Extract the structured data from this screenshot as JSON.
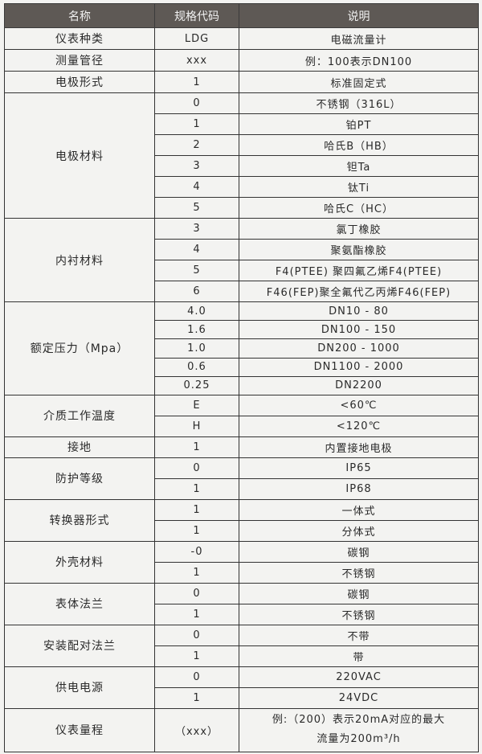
{
  "header": {
    "name": "名称",
    "code": "规格代码",
    "desc": "说明"
  },
  "groups": [
    {
      "name": "仪表种类",
      "rows": [
        {
          "code": "LDG",
          "desc": "电磁流量计"
        }
      ]
    },
    {
      "name": "测量管径",
      "rows": [
        {
          "code": "xxx",
          "desc": "例：100表示DN100"
        }
      ]
    },
    {
      "name": "电极形式",
      "rows": [
        {
          "code": "1",
          "desc": "标准固定式"
        }
      ]
    },
    {
      "name": "电极材料",
      "rows": [
        {
          "code": "0",
          "desc": "不锈钢（316L）"
        },
        {
          "code": "1",
          "desc": "铂PT"
        },
        {
          "code": "2",
          "desc": "哈氏B（HB）"
        },
        {
          "code": "3",
          "desc": "钽Ta"
        },
        {
          "code": "4",
          "desc": "钛Ti"
        },
        {
          "code": "5",
          "desc": "哈氏C（HC）"
        }
      ]
    },
    {
      "name": "内衬材料",
      "rows": [
        {
          "code": "3",
          "desc": "氯丁橡胶"
        },
        {
          "code": "4",
          "desc": "聚氨酯橡胶"
        },
        {
          "code": "5",
          "desc": "F4(PTEE) 聚四氟乙烯F4(PTEE)"
        },
        {
          "code": "6",
          "desc": "F46(FEP)聚全氟代乙丙烯F46(FEP)"
        }
      ]
    },
    {
      "name": "额定压力（Mpa）",
      "rows": [
        {
          "code": "4.0",
          "desc": "DN10 - 80"
        },
        {
          "code": "1.6",
          "desc": "DN100 - 150"
        },
        {
          "code": "1.0",
          "desc": "DN200 - 1000"
        },
        {
          "code": "0.6",
          "desc": "DN1100 - 2000"
        },
        {
          "code": "0.25",
          "desc": "DN2200"
        }
      ]
    },
    {
      "name": "介质工作温度",
      "rows": [
        {
          "code": "E",
          "desc": "<60℃"
        },
        {
          "code": "H",
          "desc": "<120℃"
        }
      ]
    },
    {
      "name": "接地",
      "rows": [
        {
          "code": "1",
          "desc": "内置接地电极"
        }
      ]
    },
    {
      "name": "防护等级",
      "rows": [
        {
          "code": "0",
          "desc": "IP65"
        },
        {
          "code": "1",
          "desc": "IP68"
        }
      ]
    },
    {
      "name": "转换器形式",
      "rows": [
        {
          "code": "1",
          "desc": "一体式"
        },
        {
          "code": "1",
          "desc": "分体式"
        }
      ]
    },
    {
      "name": "外壳材料",
      "rows": [
        {
          "code": "-0",
          "desc": "碳钢"
        },
        {
          "code": "1",
          "desc": "不锈钢"
        }
      ]
    },
    {
      "name": "表体法兰",
      "rows": [
        {
          "code": "0",
          "desc": "碳钢"
        },
        {
          "code": "1",
          "desc": "不锈钢"
        }
      ]
    },
    {
      "name": "安装配对法兰",
      "rows": [
        {
          "code": "0",
          "desc": "不带"
        },
        {
          "code": "1",
          "desc": "带"
        }
      ]
    },
    {
      "name": "供电电源",
      "rows": [
        {
          "code": "0",
          "desc": "220VAC"
        },
        {
          "code": "1",
          "desc": "24VDC"
        }
      ]
    },
    {
      "name": "仪表量程",
      "rows": [
        {
          "code": "（xxx）",
          "desc": "例:（200）表示20mA对应的最大流量为200m³/h"
        }
      ]
    }
  ],
  "colors": {
    "header_bg": "#5e5955",
    "page_bg": "#f3f3f1",
    "border": "#333333"
  }
}
